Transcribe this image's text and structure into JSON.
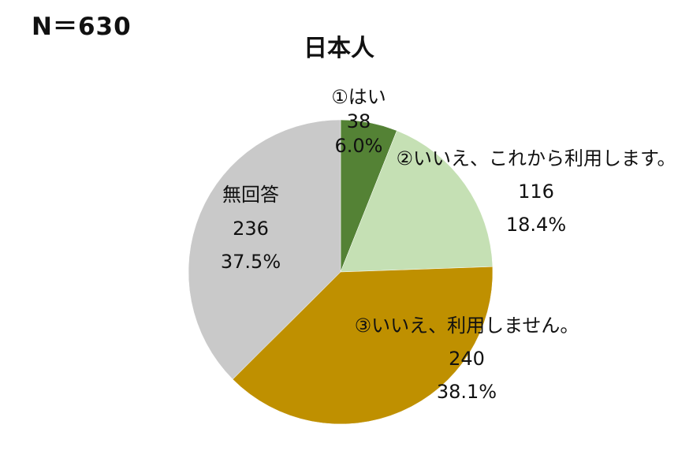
{
  "header": {
    "sample_size": "N＝630"
  },
  "chart_data": {
    "type": "pie",
    "title": "日本人",
    "total": 630,
    "slices": [
      {
        "label": "①はい",
        "value": 38,
        "percent": "6.0%",
        "color": "#548235"
      },
      {
        "label": "②いいえ、これから利用します。",
        "value": 116,
        "percent": "18.4%",
        "color": "#c5e0b4"
      },
      {
        "label": "③いいえ、利用しません。",
        "value": 240,
        "percent": "38.1%",
        "color": "#bf9000"
      },
      {
        "label": "無回答",
        "value": 236,
        "percent": "37.5%",
        "color": "#c9c9c9"
      }
    ],
    "start_angle": "12 o'clock",
    "direction": "clockwise",
    "legend": "none"
  }
}
